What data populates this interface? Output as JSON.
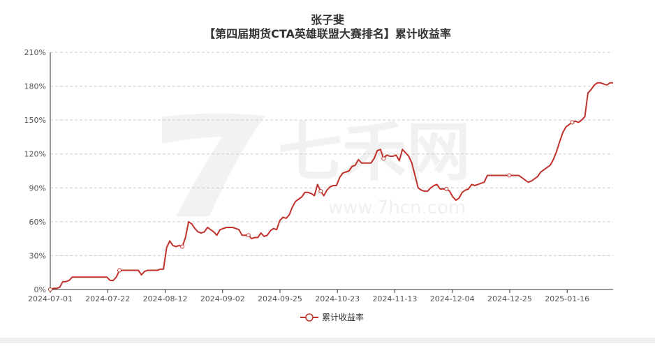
{
  "chart_data": {
    "type": "line",
    "title": "张子斐",
    "subtitle": "【第四届期货CTA英雄联盟大赛排名】累计收益率",
    "x_tick_labels": [
      "2024-07-01",
      "2024-07-22",
      "2024-08-12",
      "2024-09-02",
      "2024-09-25",
      "2024-10-23",
      "2024-11-13",
      "2024-12-04",
      "2024-12-25",
      "2025-01-16"
    ],
    "y_tick_labels": [
      "0%",
      "30%",
      "60%",
      "90%",
      "120%",
      "150%",
      "180%",
      "210%"
    ],
    "ylim": [
      0,
      210
    ],
    "grid": true,
    "legend_position": "bottom",
    "colors": {
      "line": "#c0322b"
    },
    "series": [
      {
        "name": "累计收益率",
        "values": [
          0,
          1,
          1,
          2,
          7,
          7,
          8,
          11,
          11,
          11,
          11,
          11,
          11,
          11,
          11,
          11,
          11,
          11,
          11,
          8,
          8,
          11,
          17,
          17,
          17,
          17,
          17,
          17,
          17,
          13,
          16,
          17,
          17,
          17,
          17,
          18,
          18,
          37,
          43,
          39,
          38,
          39,
          38,
          46,
          60,
          58,
          54,
          51,
          50,
          51,
          55,
          53,
          51,
          48,
          53,
          54,
          55,
          55,
          55,
          54,
          53,
          48,
          48,
          48,
          45,
          46,
          46,
          50,
          47,
          48,
          52,
          54,
          53,
          61,
          64,
          63,
          66,
          73,
          78,
          80,
          82,
          86,
          86,
          85,
          83,
          93,
          87,
          83,
          88,
          91,
          92,
          92,
          99,
          103,
          104,
          105,
          109,
          110,
          115,
          112,
          112,
          112,
          112,
          116,
          123,
          124,
          116,
          119,
          118,
          118,
          119,
          114,
          124,
          121,
          118,
          112,
          101,
          90,
          88,
          87,
          87,
          90,
          92,
          93,
          89,
          89,
          89,
          87,
          82,
          79,
          81,
          86,
          88,
          89,
          93,
          92,
          93,
          94,
          95,
          101,
          101,
          101,
          101,
          101,
          101,
          101,
          101,
          101,
          101,
          101,
          99,
          97,
          95,
          96,
          98,
          100,
          104,
          106,
          108,
          110,
          115,
          122,
          131,
          139,
          144,
          146,
          148,
          149,
          148,
          150,
          153,
          174,
          177,
          181,
          183,
          183,
          182,
          181,
          183,
          183
        ]
      }
    ],
    "markers": [
      0,
      22,
      42,
      63,
      86,
      106,
      126,
      146,
      166,
      186,
      208
    ],
    "watermark": {
      "brand": "七禾网",
      "url": "www.7hcn.com"
    }
  }
}
